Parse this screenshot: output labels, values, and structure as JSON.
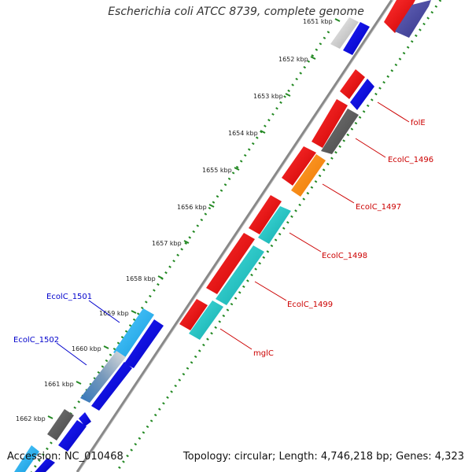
{
  "title": "Escherichia coli ATCC 8739, complete genome",
  "footer": {
    "accession": "Accession: NC_010468",
    "summary": "Topology: circular; Length: 4,746,218 bp; Genes: 4,323"
  },
  "kbp_ticks": [
    {
      "label": "1651 kbp"
    },
    {
      "label": "1652 kbp"
    },
    {
      "label": "1653 kbp"
    },
    {
      "label": "1654 kbp"
    },
    {
      "label": "1655 kbp"
    },
    {
      "label": "1656 kbp"
    },
    {
      "label": "1657 kbp"
    },
    {
      "label": "1658 kbp"
    },
    {
      "label": "1659 kbp"
    },
    {
      "label": "1660 kbp"
    },
    {
      "label": "1661 kbp"
    },
    {
      "label": "1662 kbp"
    }
  ],
  "gene_labels": {
    "folE": "folE",
    "ecolc_1496": "EcolC_1496",
    "ecolc_1497": "EcolC_1497",
    "ecolc_1498": "EcolC_1498",
    "ecolc_1499": "EcolC_1499",
    "mglC": "mglC",
    "ecolc_1501": "EcolC_1501",
    "ecolc_1502": "EcolC_1502"
  },
  "colors": {
    "forward_cds": "#ee0000",
    "reverse_cds": "#0000dd",
    "cyan_feature": "#22cccc",
    "light_blue_feature": "#22bbee",
    "orange_feature": "#ff8800",
    "gray_feature": "#555555",
    "backbone": "#888888",
    "gc_ticks": "#228822",
    "label_red": "#cc0000",
    "label_blue": "#0000cc"
  }
}
